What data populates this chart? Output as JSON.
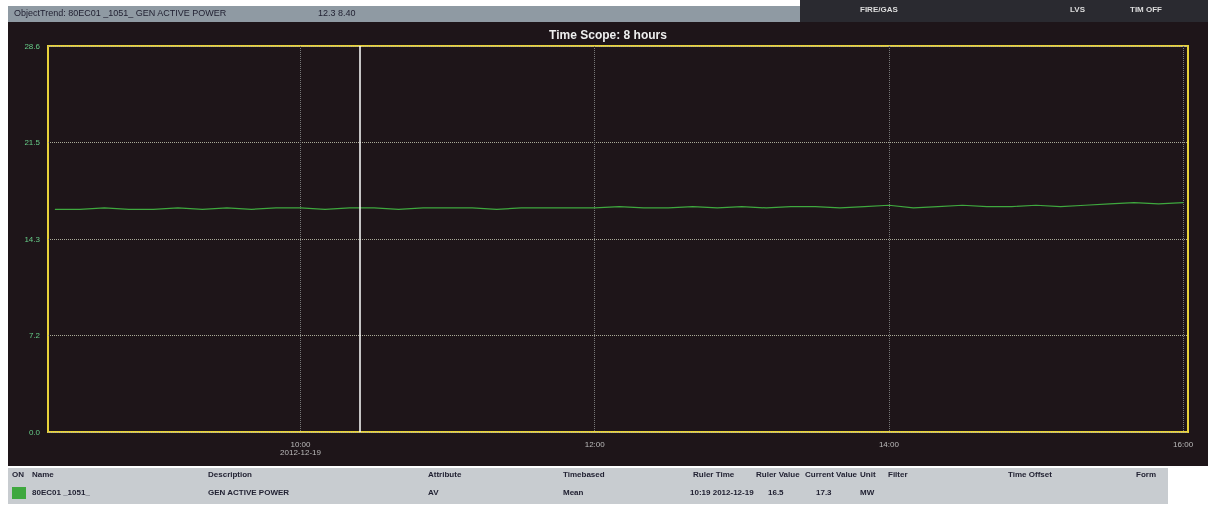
{
  "chart_data": {
    "type": "line",
    "title": "Time Scope: 8 hours",
    "x": [
      "2012-12-19T08:20",
      "2012-12-19T08:30",
      "2012-12-19T08:40",
      "2012-12-19T08:50",
      "2012-12-19T09:00",
      "2012-12-19T09:10",
      "2012-12-19T09:20",
      "2012-12-19T09:30",
      "2012-12-19T09:40",
      "2012-12-19T09:50",
      "2012-12-19T10:00",
      "2012-12-19T10:10",
      "2012-12-19T10:20",
      "2012-12-19T10:30",
      "2012-12-19T10:40",
      "2012-12-19T10:50",
      "2012-12-19T11:00",
      "2012-12-19T11:10",
      "2012-12-19T11:20",
      "2012-12-19T11:30",
      "2012-12-19T11:40",
      "2012-12-19T11:50",
      "2012-12-19T12:00",
      "2012-12-19T12:10",
      "2012-12-19T12:20",
      "2012-12-19T12:30",
      "2012-12-19T12:40",
      "2012-12-19T12:50",
      "2012-12-19T13:00",
      "2012-12-19T13:10",
      "2012-12-19T13:20",
      "2012-12-19T13:30",
      "2012-12-19T13:40",
      "2012-12-19T13:50",
      "2012-12-19T14:00",
      "2012-12-19T14:10",
      "2012-12-19T14:20",
      "2012-12-19T14:30",
      "2012-12-19T14:40",
      "2012-12-19T14:50",
      "2012-12-19T15:00",
      "2012-12-19T15:10",
      "2012-12-19T15:20",
      "2012-12-19T15:30",
      "2012-12-19T15:40",
      "2012-12-19T15:50",
      "2012-12-19T16:00"
    ],
    "series": [
      {
        "color": "#3fa83f",
        "values": [
          16.5,
          16.5,
          16.6,
          16.5,
          16.5,
          16.6,
          16.5,
          16.6,
          16.5,
          16.6,
          16.6,
          16.5,
          16.6,
          16.6,
          16.5,
          16.6,
          16.6,
          16.6,
          16.5,
          16.6,
          16.6,
          16.6,
          16.6,
          16.7,
          16.6,
          16.6,
          16.7,
          16.6,
          16.7,
          16.6,
          16.7,
          16.7,
          16.6,
          16.7,
          16.8,
          16.6,
          16.7,
          16.8,
          16.7,
          16.7,
          16.8,
          16.7,
          16.8,
          16.9,
          17.0,
          16.9,
          17.0
        ]
      }
    ],
    "xlim": [
      "2012-12-19T08:17",
      "2012-12-19T16:02"
    ],
    "xticks": [
      {
        "value": "2012-12-19T10:00",
        "label": "10:00\n2012-12-19"
      },
      {
        "value": "2012-12-19T12:00",
        "label": "12:00"
      },
      {
        "value": "2012-12-19T14:00",
        "label": "14:00"
      },
      {
        "value": "2012-12-19T16:00",
        "label": "16:00"
      }
    ],
    "ylim": [
      0,
      28.6
    ],
    "yticks": [
      {
        "value": 0,
        "label": "0.0"
      },
      {
        "value": 7.15,
        "label": "7.2"
      },
      {
        "value": 14.3,
        "label": "14.3"
      },
      {
        "value": 21.45,
        "label": "21.5"
      },
      {
        "value": 28.6,
        "label": "28.6"
      }
    ],
    "ref_lines": [
      {
        "axis": "x",
        "value": "2012-12-19T10:24",
        "color": "#ffffff"
      }
    ],
    "grid": true,
    "marker": "none",
    "line_style": "solid",
    "annotations": [
      "ObjectTrend: 80EC01 _1051_ GEN ACTIVE POWER",
      "12.3  8.40",
      "FIRE/GAS",
      "LVS",
      "TIM OFF",
      "ON",
      "Name",
      "Description",
      "Attribute",
      "Timebased",
      "Ruler Time",
      "Ruler Value",
      "Current Value",
      "Unit",
      "Filter",
      "Time Offset",
      "Form",
      "80EC01 _1051_",
      "GEN ACTIVE POWER",
      "AV",
      "Mean",
      "10:19 2012-12-19",
      "16.5",
      "17.3",
      "MW"
    ]
  }
}
